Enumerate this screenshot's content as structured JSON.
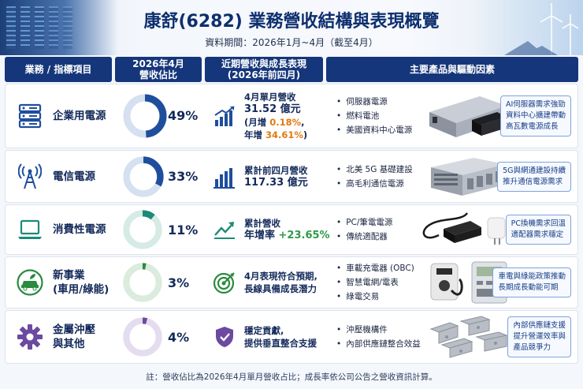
{
  "header": {
    "title": "康舒(6282) 業務營收結構與表現概覽",
    "subtitle": "資料期間：2026年1月~4月（截至4月）"
  },
  "columns": [
    "業務 / 指標項目",
    "2026年4月\n營收佔比",
    "近期營收與成長表現\n(2026年前四月)",
    "主要產品與驅動因素"
  ],
  "rows": [
    {
      "name": "企業用電源",
      "share": 49,
      "share_label": "49%",
      "color": "#1f4e9c",
      "icon": "server-rack-icon",
      "perf_icon": "bar-chart-up-icon",
      "perf": {
        "l1": "4月單月營收",
        "l2": "31.52 億元",
        "l3a": "(月增 ",
        "l3b": "0.18%",
        "l3c": ",",
        "l4a": "年增 ",
        "l4b": "34.61%",
        "l4c": ")"
      },
      "drivers": [
        "伺服器電源",
        "燃料電池",
        "美國資料中心電源"
      ],
      "note": [
        "AI伺服器需求強勁",
        "資料中心擴建帶動",
        "高瓦數電源成長"
      ]
    },
    {
      "name": "電信電源",
      "share": 33,
      "share_label": "33%",
      "color": "#1f4e9c",
      "icon": "antenna-tower-icon",
      "perf_icon": "bar-chart-icon",
      "perf": {
        "l1": "累計前四月營收",
        "l2": "117.33 億元"
      },
      "drivers": [
        "北美 5G 基礎建設",
        "高毛利通信電源"
      ],
      "note": [
        "5G與網通建設持續",
        "推升通信電源需求"
      ]
    },
    {
      "name": "消費性電源",
      "share": 11,
      "share_label": "11%",
      "color": "#1c8a78",
      "icon": "laptop-icon",
      "perf_icon": "trend-up-icon",
      "perf": {
        "l1": "累計營收",
        "l2a": "年增率 ",
        "l2b": "+23.65%"
      },
      "drivers": [
        "PC/筆電電源",
        "傳統適配器"
      ],
      "note": [
        "PC換機需求回溫",
        "適配器需求穩定"
      ]
    },
    {
      "name": "新事業\n(車用/綠能)",
      "share": 3,
      "share_label": "3%",
      "color": "#2a8a3e",
      "icon": "eco-car-icon",
      "perf_icon": "target-icon",
      "perf": {
        "l1": "4月表現符合預期,",
        "l2": "長線具備成長潛力"
      },
      "drivers": [
        "車載充電器 (OBC)",
        "智慧電網/電表",
        "綠電交易"
      ],
      "note": [
        "車電與綠能政策推動",
        "長期成長動能可期"
      ]
    },
    {
      "name": "金屬沖壓\n與其他",
      "share": 4,
      "share_label": "4%",
      "color": "#6b4aa0",
      "icon": "gear-icon",
      "perf_icon": "shield-check-icon",
      "perf": {
        "l1": "穩定貢獻,",
        "l2": "提供垂直整合支援"
      },
      "drivers": [
        "沖壓機構件",
        "內部供應鏈整合效益"
      ],
      "note": [
        "內部供應鏈支援",
        "提升營運效率與",
        "產品競爭力"
      ]
    }
  ],
  "footer": "註：營收佔比為2026年4月單月營收占比；成長率依公司公告之營收資訊計算。"
}
